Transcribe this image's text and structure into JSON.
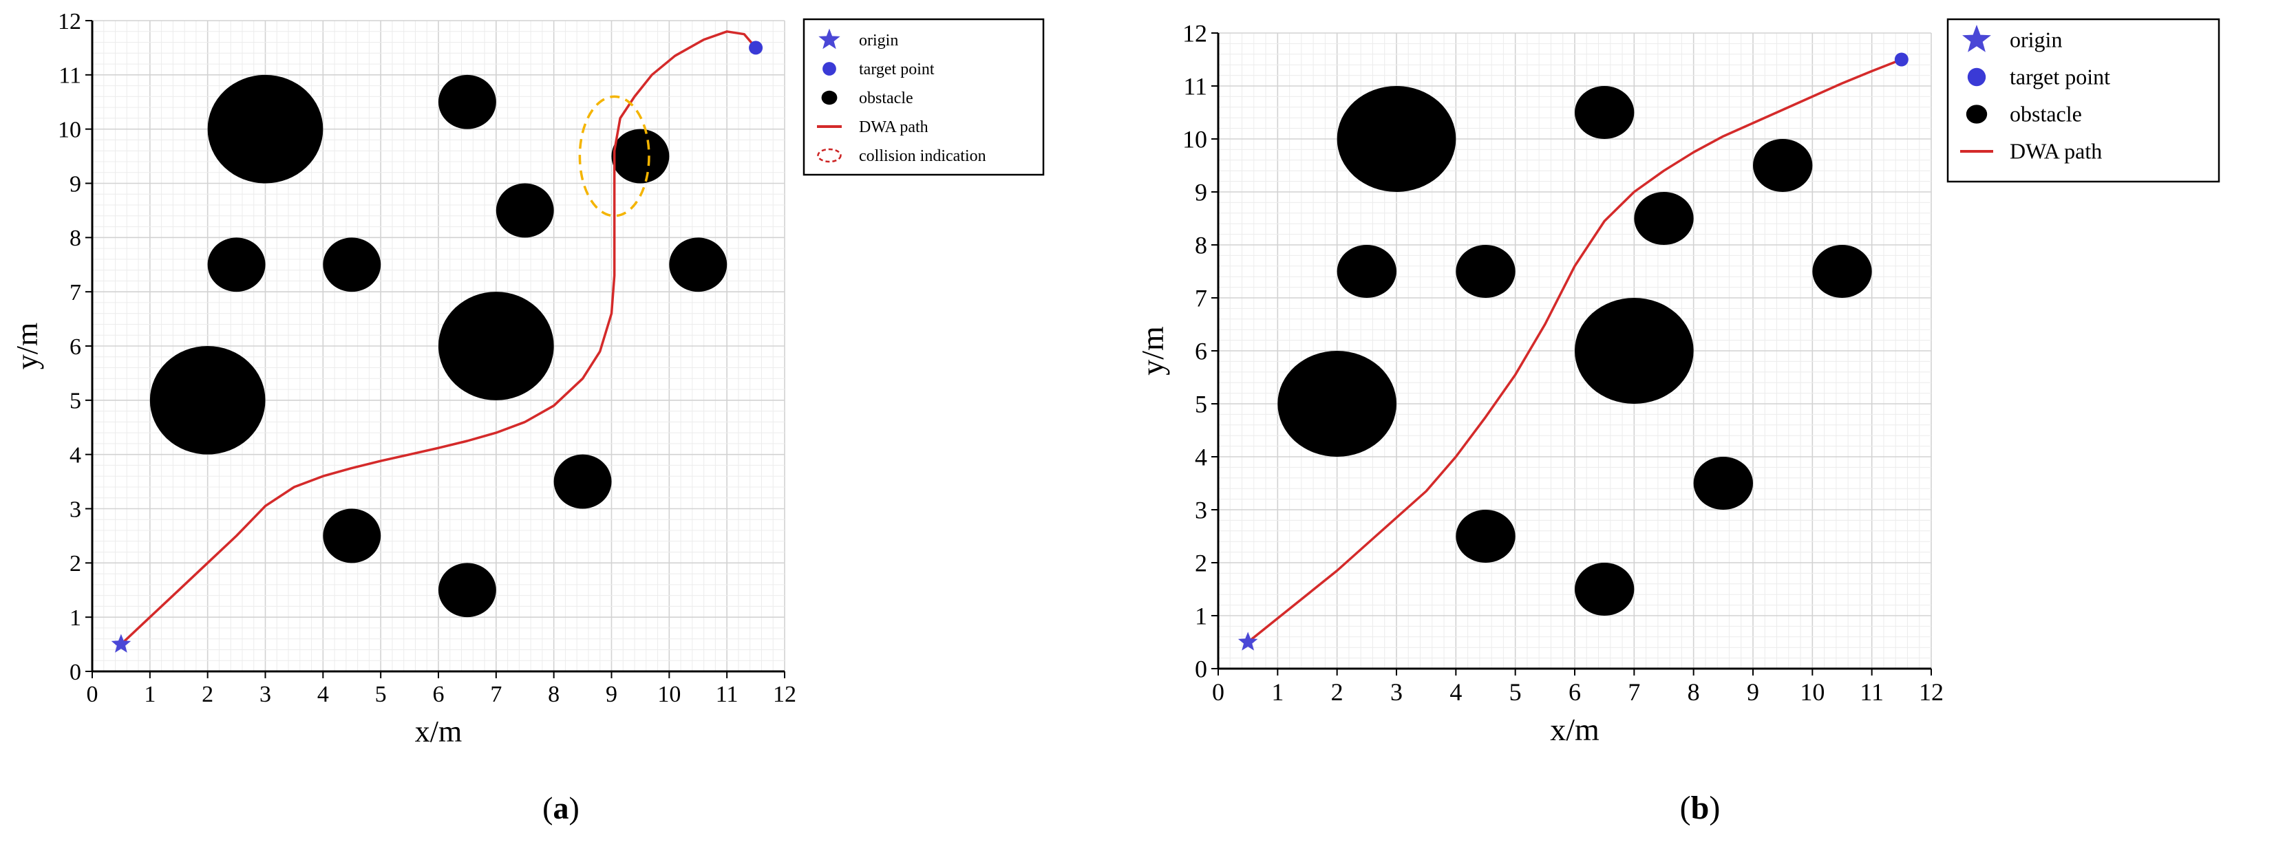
{
  "chart_data": [
    {
      "type": "scatter",
      "panel_label": "a",
      "xlabel": "x/m",
      "ylabel": "y/m",
      "xlim": [
        0,
        12
      ],
      "ylim": [
        0,
        12
      ],
      "xticks": [
        "0",
        "1",
        "2",
        "3",
        "4",
        "5",
        "6",
        "7",
        "8",
        "9",
        "10",
        "11",
        "12"
      ],
      "yticks": [
        "0",
        "1",
        "2",
        "3",
        "4",
        "5",
        "6",
        "7",
        "8",
        "9",
        "10",
        "11",
        "12"
      ],
      "grid": true,
      "legend_position": "top-right-outside",
      "legend": [
        "origin",
        "target point",
        "obstacle",
        "DWA path",
        "collision indication"
      ],
      "origin": {
        "x": 0.5,
        "y": 0.5
      },
      "target": {
        "x": 11.5,
        "y": 11.5
      },
      "obstacles": [
        {
          "x": 3,
          "y": 10,
          "r": 1.0
        },
        {
          "x": 6.5,
          "y": 10.5,
          "r": 0.5
        },
        {
          "x": 9.5,
          "y": 9.5,
          "r": 0.5
        },
        {
          "x": 7.5,
          "y": 8.5,
          "r": 0.5
        },
        {
          "x": 2.5,
          "y": 7.5,
          "r": 0.5
        },
        {
          "x": 4.5,
          "y": 7.5,
          "r": 0.5
        },
        {
          "x": 10.5,
          "y": 7.5,
          "r": 0.5
        },
        {
          "x": 7,
          "y": 6,
          "r": 1.0
        },
        {
          "x": 2,
          "y": 5,
          "r": 1.0
        },
        {
          "x": 8.5,
          "y": 3.5,
          "r": 0.5
        },
        {
          "x": 4.5,
          "y": 2.5,
          "r": 0.5
        },
        {
          "x": 6.5,
          "y": 1.5,
          "r": 0.5
        }
      ],
      "path": [
        [
          0.5,
          0.5
        ],
        [
          1,
          1
        ],
        [
          1.5,
          1.5
        ],
        [
          2,
          2
        ],
        [
          2.5,
          2.5
        ],
        [
          3,
          3.05
        ],
        [
          3.5,
          3.4
        ],
        [
          4,
          3.6
        ],
        [
          4.5,
          3.75
        ],
        [
          5,
          3.88
        ],
        [
          5.5,
          4.0
        ],
        [
          6,
          4.12
        ],
        [
          6.5,
          4.25
        ],
        [
          7,
          4.4
        ],
        [
          7.5,
          4.6
        ],
        [
          8,
          4.9
        ],
        [
          8.5,
          5.4
        ],
        [
          8.8,
          5.9
        ],
        [
          9.0,
          6.6
        ],
        [
          9.05,
          7.3
        ],
        [
          9.05,
          8.2
        ],
        [
          9.05,
          9.0
        ],
        [
          9.05,
          9.6
        ],
        [
          9.15,
          10.2
        ],
        [
          9.4,
          10.6
        ],
        [
          9.7,
          11.0
        ],
        [
          10.1,
          11.35
        ],
        [
          10.6,
          11.65
        ],
        [
          11.0,
          11.8
        ],
        [
          11.3,
          11.75
        ],
        [
          11.5,
          11.5
        ]
      ],
      "collision_ellipse": {
        "cx": 9.05,
        "cy": 9.5,
        "rx": 0.6,
        "ry": 1.1
      }
    },
    {
      "type": "scatter",
      "panel_label": "b",
      "xlabel": "x/m",
      "ylabel": "y/m",
      "xlim": [
        0,
        12
      ],
      "ylim": [
        0,
        12
      ],
      "xticks": [
        "0",
        "1",
        "2",
        "3",
        "4",
        "5",
        "6",
        "7",
        "8",
        "9",
        "10",
        "11",
        "12"
      ],
      "yticks": [
        "0",
        "1",
        "2",
        "3",
        "4",
        "5",
        "6",
        "7",
        "8",
        "9",
        "10",
        "11",
        "12"
      ],
      "grid": true,
      "legend_position": "top-right-outside",
      "legend": [
        "origin",
        "target point",
        "obstacle",
        "DWA path"
      ],
      "origin": {
        "x": 0.5,
        "y": 0.5
      },
      "target": {
        "x": 11.5,
        "y": 11.5
      },
      "obstacles": [
        {
          "x": 3,
          "y": 10,
          "r": 1.0
        },
        {
          "x": 6.5,
          "y": 10.5,
          "r": 0.5
        },
        {
          "x": 9.5,
          "y": 9.5,
          "r": 0.5
        },
        {
          "x": 7.5,
          "y": 8.5,
          "r": 0.5
        },
        {
          "x": 2.5,
          "y": 7.5,
          "r": 0.5
        },
        {
          "x": 4.5,
          "y": 7.5,
          "r": 0.5
        },
        {
          "x": 10.5,
          "y": 7.5,
          "r": 0.5
        },
        {
          "x": 7,
          "y": 6,
          "r": 1.0
        },
        {
          "x": 2,
          "y": 5,
          "r": 1.0
        },
        {
          "x": 8.5,
          "y": 3.5,
          "r": 0.5
        },
        {
          "x": 4.5,
          "y": 2.5,
          "r": 0.5
        },
        {
          "x": 6.5,
          "y": 1.5,
          "r": 0.5
        }
      ],
      "path": [
        [
          0.5,
          0.5
        ],
        [
          1,
          0.95
        ],
        [
          1.5,
          1.4
        ],
        [
          2,
          1.85
        ],
        [
          2.5,
          2.35
        ],
        [
          3,
          2.85
        ],
        [
          3.5,
          3.35
        ],
        [
          4,
          4.0
        ],
        [
          4.5,
          4.75
        ],
        [
          5,
          5.55
        ],
        [
          5.5,
          6.5
        ],
        [
          6,
          7.6
        ],
        [
          6.5,
          8.45
        ],
        [
          7,
          9.0
        ],
        [
          7.5,
          9.4
        ],
        [
          8,
          9.75
        ],
        [
          8.5,
          10.05
        ],
        [
          9,
          10.3
        ],
        [
          9.5,
          10.55
        ],
        [
          10,
          10.8
        ],
        [
          10.5,
          11.05
        ],
        [
          11,
          11.28
        ],
        [
          11.5,
          11.5
        ]
      ]
    }
  ],
  "colors": {
    "path": "#d42a2a",
    "origin_star": "#4a47d6",
    "target_dot": "#3a3ad6",
    "obstacle": "#000000",
    "collision_ellipse_legend": "#cc2222",
    "collision_ellipse_plot": "#f4b400",
    "grid_minor": "#ececec",
    "grid_major": "#d2d2d2"
  }
}
